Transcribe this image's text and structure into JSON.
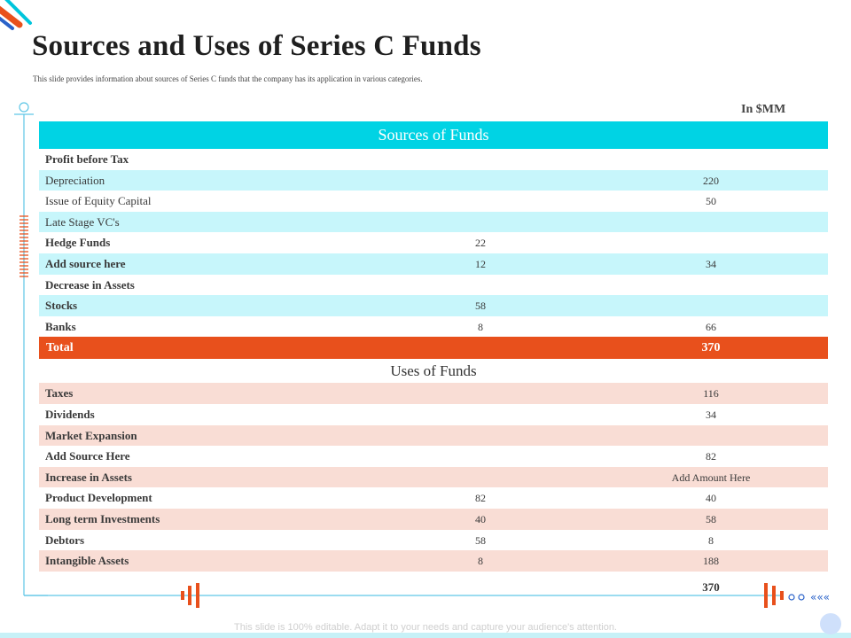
{
  "title": "Sources and Uses of Series C Funds",
  "subtitle": "This slide provides information about sources of Series C funds that the company has its application in various categories.",
  "unit_label": "In $MM",
  "sources": {
    "header": "Sources of Funds",
    "rows": [
      {
        "label": "Profit before Tax",
        "c1": "",
        "c2": ""
      },
      {
        "label": "Depreciation",
        "c1": "",
        "c2": "220"
      },
      {
        "label": "Issue of Equity Capital",
        "c1": "",
        "c2": "50"
      },
      {
        "label": "Late Stage VC's",
        "c1": "",
        "c2": ""
      },
      {
        "label": "Hedge Funds",
        "c1": "22",
        "c2": ""
      },
      {
        "label": "Add source here",
        "c1": "12",
        "c2": "34"
      },
      {
        "label": "Decrease in Assets",
        "c1": "",
        "c2": ""
      },
      {
        "label": "Stocks",
        "c1": "58",
        "c2": ""
      },
      {
        "label": "Banks",
        "c1": "8",
        "c2": "66"
      }
    ],
    "total_label": "Total",
    "total_value": "370"
  },
  "uses": {
    "header": "Uses of Funds",
    "rows": [
      {
        "label": "Taxes",
        "c1": "",
        "c2": "116"
      },
      {
        "label": "Dividends",
        "c1": "",
        "c2": "34"
      },
      {
        "label": "Market Expansion",
        "c1": "",
        "c2": ""
      },
      {
        "label": "Add Source Here",
        "c1": "",
        "c2": "82"
      },
      {
        "label": "Increase in Assets",
        "c1": "",
        "c2": "Add Amount Here"
      },
      {
        "label": "Product Development",
        "c1": "82",
        "c2": "40"
      },
      {
        "label": "Long term Investments",
        "c1": "40",
        "c2": "58"
      },
      {
        "label": "Debtors",
        "c1": "58",
        "c2": "8"
      },
      {
        "label": "Intangible Assets",
        "c1": "8",
        "c2": "188"
      }
    ],
    "total_value": "370"
  },
  "footer": "This slide is 100% editable. Adapt it to your needs and capture your audience's attention.",
  "colors": {
    "accent_cyan": "#00d3e4",
    "light_cyan": "#c7f6fb",
    "accent_orange": "#e8501c",
    "light_pink": "#f9ddd5"
  }
}
